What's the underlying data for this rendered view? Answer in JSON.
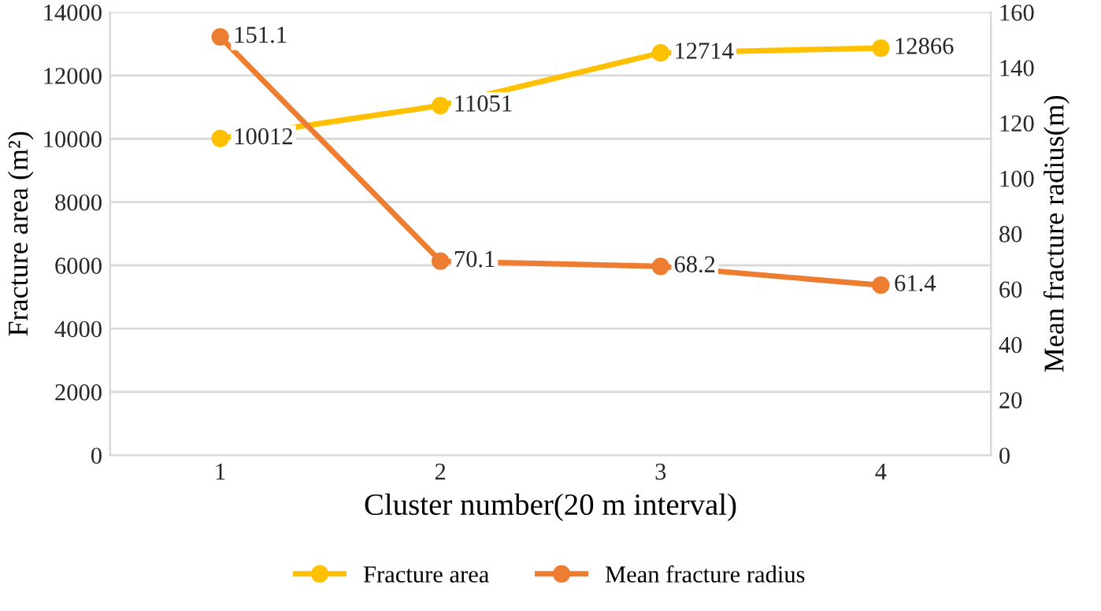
{
  "chart_data": {
    "type": "line",
    "xlabel": "Cluster number(20 m interval)",
    "ylabel": "Fracture area (m²)",
    "y2label": "Mean fracture radius(m)",
    "categories": [
      "1",
      "2",
      "3",
      "4"
    ],
    "series": [
      {
        "name": "Fracture area",
        "color": "#ffc000",
        "values": [
          10012,
          11051,
          12714,
          12866
        ]
      },
      {
        "name": "Mean fracture radius",
        "color": "#ed7d31",
        "values": [
          151.1,
          70.1,
          68.2,
          61.4
        ],
        "axis": "y2"
      }
    ],
    "ylim": [
      0,
      14000
    ],
    "yticks": [
      0,
      2000,
      4000,
      6000,
      8000,
      10000,
      12000,
      14000
    ],
    "y2lim": [
      0,
      160
    ],
    "y2ticks": [
      0,
      20,
      40,
      60,
      80,
      100,
      120,
      140,
      160
    ],
    "grid": "y",
    "legend": "bottom",
    "marker": "circle",
    "line_style": "solid",
    "data_labels": true
  }
}
